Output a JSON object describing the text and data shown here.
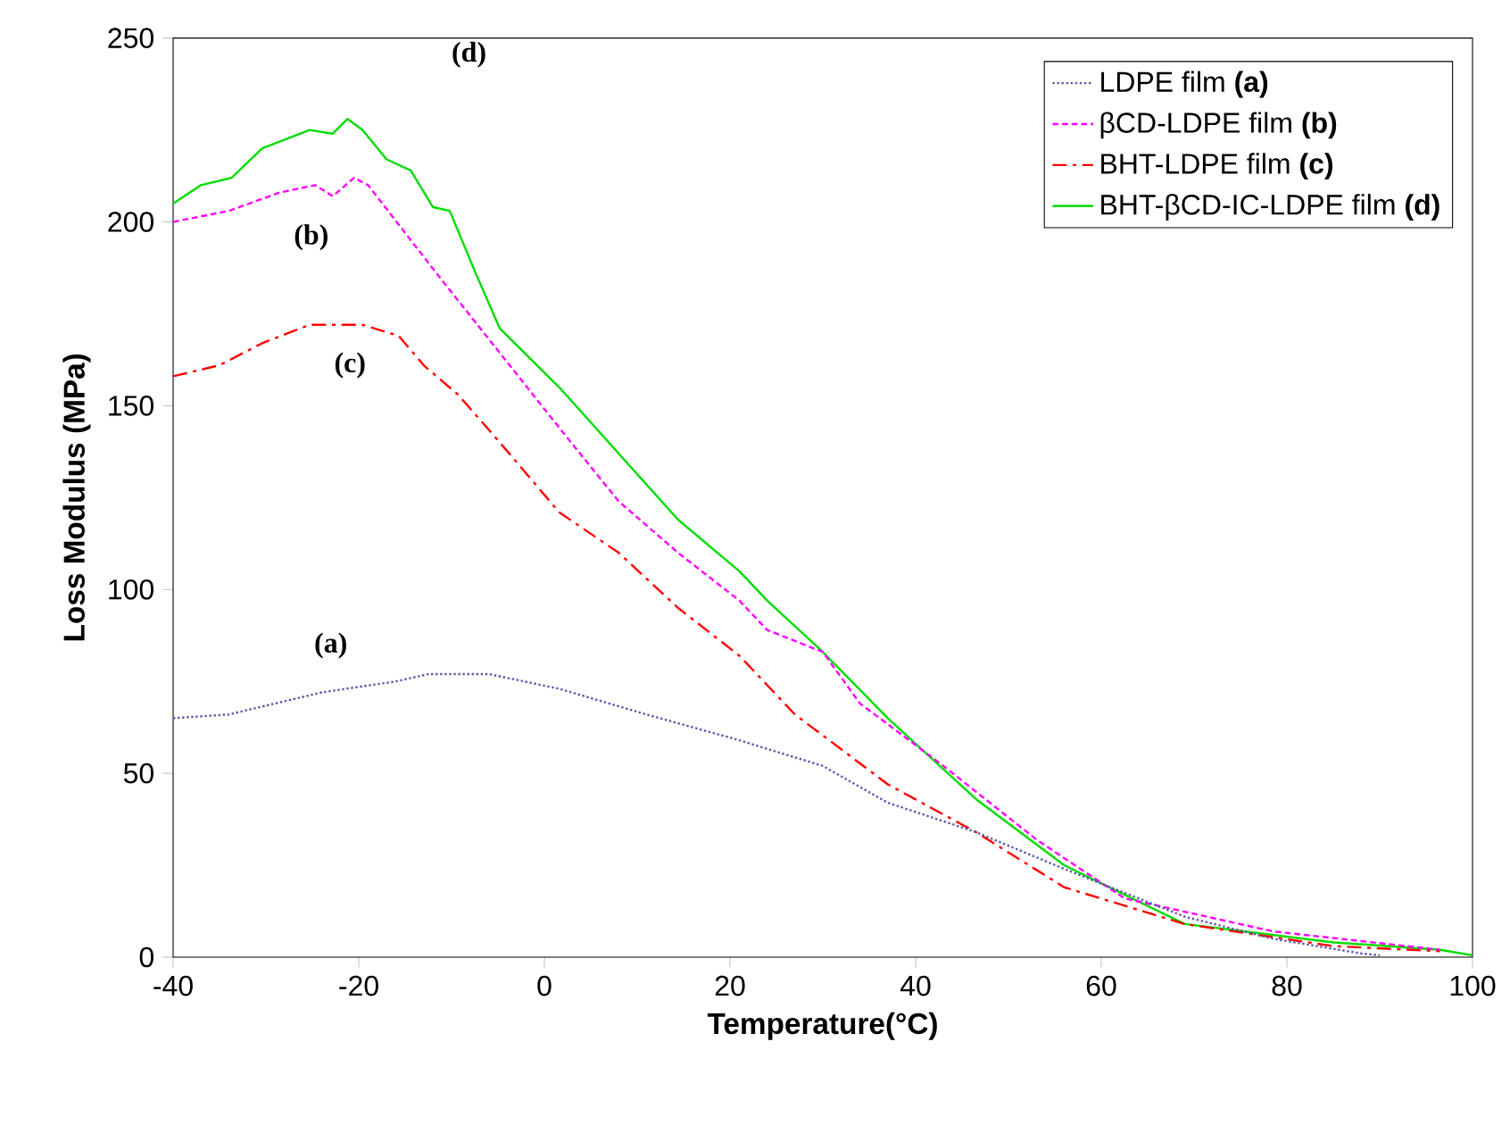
{
  "chart_data": {
    "type": "line",
    "xlabel": "Temperature(°C)",
    "ylabel": "Loss Modulus (MPa)",
    "xlim": [
      -40,
      100
    ],
    "xticks": [
      -40,
      -20,
      0,
      20,
      40,
      60,
      80,
      100
    ],
    "ylim": [
      0,
      250
    ],
    "yticks": [
      0,
      50,
      100,
      150,
      200,
      250
    ],
    "legend": "top right",
    "grid": false,
    "marker": "none",
    "series": [
      {
        "name": "LDPE film **(a)**",
        "color": "#5a5aa8",
        "line_style": "dotted",
        "x": [
          -40,
          -34,
          -24,
          -16,
          -12.5,
          -6,
          1.6,
          11,
          21,
          30,
          37,
          46.5,
          56,
          69,
          78.5,
          88,
          90
        ],
        "values": [
          65,
          66,
          72,
          75,
          77,
          77,
          73,
          66,
          59,
          52,
          42,
          34,
          24,
          11,
          5,
          1,
          0.5
        ]
      },
      {
        "name": "βCD-LDPE film **(b)**",
        "color": "#ff00ff",
        "line_style": "dashed",
        "x": [
          -40,
          -34,
          -28.5,
          -24.7,
          -22.8,
          -20.5,
          -19,
          -15,
          -11,
          -5,
          1.6,
          8,
          14.4,
          21,
          24,
          30,
          34,
          43,
          53,
          62.5,
          78.5,
          96.5
        ],
        "values": [
          200,
          203,
          208,
          210,
          207,
          212,
          210,
          197,
          184,
          165,
          144,
          124,
          110,
          97,
          89,
          83,
          69,
          52,
          32,
          16,
          7,
          2
        ]
      },
      {
        "name": "BHT-LDPE film **(c)**",
        "color": "#ff0000",
        "line_style": "dashdot",
        "x": [
          -40,
          -35,
          -30.4,
          -25.3,
          -19.6,
          -15.7,
          -13,
          -9.3,
          -4.8,
          1.6,
          8,
          14.4,
          21,
          27,
          37,
          46.5,
          56,
          69,
          85,
          96.5
        ],
        "values": [
          158,
          161,
          167,
          172,
          172,
          169,
          161,
          153,
          140,
          121,
          110,
          95,
          82,
          66,
          47,
          34,
          19,
          9,
          3,
          1.6
        ]
      },
      {
        "name": "BHT-βCD-IC-LDPE film **(d)**",
        "color": "#00dd00",
        "line_style": "solid",
        "x": [
          -40,
          -37,
          -33.7,
          -30.4,
          -25.3,
          -22.8,
          -21.2,
          -19.6,
          -17,
          -14.4,
          -12,
          -10.2,
          -7.4,
          -4.8,
          1.6,
          8,
          14.4,
          21,
          24,
          30,
          37,
          46.5,
          56,
          69,
          85,
          96.5,
          100
        ],
        "values": [
          205,
          210,
          212,
          220,
          225,
          224,
          228,
          225,
          217,
          214,
          204,
          203,
          186,
          171,
          155,
          137,
          119,
          105,
          97,
          83,
          65,
          43,
          25,
          9,
          4,
          2,
          0.5
        ]
      }
    ],
    "annotations": [
      "(a)",
      "(b)",
      "(c)",
      "(d)"
    ]
  }
}
